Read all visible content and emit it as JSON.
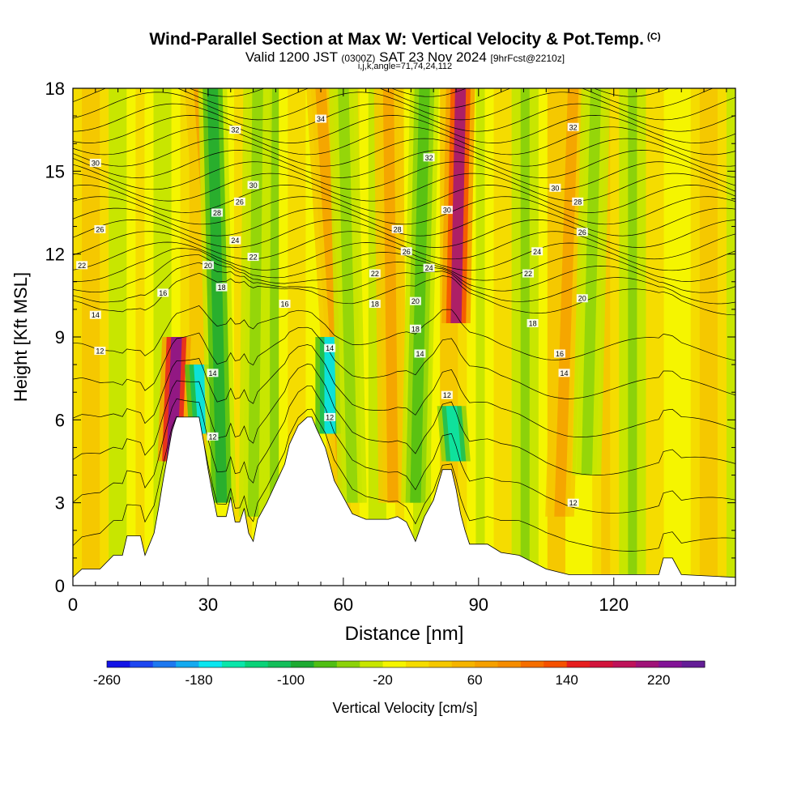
{
  "title": {
    "main": "Wind-Parallel Section at Max W: Vertical Velocity & Pot.Temp.",
    "copyright": "(C)",
    "valid_prefix": "Valid 1200 JST",
    "valid_utc": "(0300Z)",
    "valid_date": "SAT 23 Nov 2024",
    "forecast": "[9hrFcst@2210z]",
    "indices": "i,j,k,angle=71,74,24,112"
  },
  "chart_data": {
    "type": "heatmap",
    "xlabel": "Distance [nm]",
    "ylabel": "Height [Kft MSL]",
    "xlim": [
      0,
      147
    ],
    "ylim": [
      0,
      18
    ],
    "xticks": [
      0,
      30,
      60,
      90,
      120
    ],
    "yticks": [
      0,
      3,
      6,
      9,
      12,
      15,
      18
    ],
    "colorbar": {
      "label": "Vertical Velocity [cm/s]",
      "min": -260,
      "max": 260,
      "tick_labels": [
        -260,
        -180,
        -100,
        -20,
        60,
        140,
        220
      ],
      "colors": [
        "#1414e6",
        "#1e46f0",
        "#1e78f0",
        "#14aaf0",
        "#0ae6f0",
        "#0ae6aa",
        "#0ad278",
        "#14be5a",
        "#1eaa32",
        "#50be14",
        "#8cd20a",
        "#c8e600",
        "#f5f500",
        "#f5dc00",
        "#f5c800",
        "#f5b400",
        "#f5a000",
        "#f58c00",
        "#f56e00",
        "#f55000",
        "#e61e1e",
        "#d2143c",
        "#be145a",
        "#a01478",
        "#821496",
        "#641e96"
      ]
    },
    "terrain_kft": [
      [
        0,
        0.3
      ],
      [
        2,
        0.6
      ],
      [
        6,
        0.6
      ],
      [
        9,
        1.1
      ],
      [
        11,
        1.1
      ],
      [
        12,
        1.8
      ],
      [
        15,
        1.8
      ],
      [
        16,
        1.1
      ],
      [
        18,
        1.9
      ],
      [
        19,
        2.8
      ],
      [
        20,
        3.8
      ],
      [
        21,
        4.7
      ],
      [
        22,
        5.6
      ],
      [
        23,
        6.1
      ],
      [
        28,
        6.1
      ],
      [
        29,
        5.2
      ],
      [
        30,
        4.2
      ],
      [
        31,
        3.3
      ],
      [
        32,
        2.5
      ],
      [
        34,
        2.5
      ],
      [
        35,
        3.2
      ],
      [
        36,
        2.3
      ],
      [
        37,
        2.3
      ],
      [
        38,
        2.8
      ],
      [
        39,
        1.9
      ],
      [
        40,
        1.6
      ],
      [
        41,
        2.4
      ],
      [
        43,
        3.0
      ],
      [
        45,
        3.7
      ],
      [
        47,
        4.4
      ],
      [
        48,
        5.1
      ],
      [
        50,
        5.8
      ],
      [
        52,
        6.1
      ],
      [
        53,
        6.1
      ],
      [
        54,
        5.7
      ],
      [
        56,
        5.0
      ],
      [
        57,
        4.4
      ],
      [
        58,
        3.8
      ],
      [
        60,
        3.2
      ],
      [
        62,
        2.6
      ],
      [
        65,
        2.4
      ],
      [
        70,
        2.4
      ],
      [
        72,
        2.5
      ],
      [
        74,
        2.3
      ],
      [
        76,
        1.6
      ],
      [
        78,
        2.5
      ],
      [
        80,
        3.1
      ],
      [
        82,
        4.2
      ],
      [
        84,
        4.2
      ],
      [
        85,
        3.5
      ],
      [
        86,
        2.6
      ],
      [
        87,
        2.0
      ],
      [
        88,
        1.5
      ],
      [
        92,
        1.5
      ],
      [
        95,
        1.2
      ],
      [
        99,
        1.1
      ],
      [
        105,
        0.6
      ],
      [
        110,
        0.4
      ],
      [
        130,
        0.4
      ],
      [
        131,
        1.0
      ],
      [
        133,
        1.0
      ],
      [
        135,
        0.4
      ],
      [
        147,
        0.3
      ]
    ],
    "theta_contour_labels": [
      {
        "value": 12,
        "x": 6,
        "y": 8.5
      },
      {
        "value": 14,
        "x": 5,
        "y": 9.8
      },
      {
        "value": 16,
        "x": 20,
        "y": 10.6
      },
      {
        "value": 18,
        "x": 33,
        "y": 10.8
      },
      {
        "value": 20,
        "x": 30,
        "y": 11.6
      },
      {
        "value": 22,
        "x": 2,
        "y": 11.6
      },
      {
        "value": 22,
        "x": 40,
        "y": 11.9
      },
      {
        "value": 24,
        "x": 36,
        "y": 12.5
      },
      {
        "value": 26,
        "x": 6,
        "y": 12.9
      },
      {
        "value": 28,
        "x": 32,
        "y": 13.5
      },
      {
        "value": 26,
        "x": 37,
        "y": 13.9
      },
      {
        "value": 30,
        "x": 40,
        "y": 14.5
      },
      {
        "value": 30,
        "x": 5,
        "y": 15.3
      },
      {
        "value": 32,
        "x": 36,
        "y": 16.5
      },
      {
        "value": 34,
        "x": 55,
        "y": 16.9
      },
      {
        "value": 16,
        "x": 47,
        "y": 10.2
      },
      {
        "value": 22,
        "x": 67,
        "y": 11.3
      },
      {
        "value": 18,
        "x": 67,
        "y": 10.2
      },
      {
        "value": 28,
        "x": 72,
        "y": 12.9
      },
      {
        "value": 26,
        "x": 74,
        "y": 12.1
      },
      {
        "value": 24,
        "x": 79,
        "y": 11.5
      },
      {
        "value": 20,
        "x": 76,
        "y": 10.3
      },
      {
        "value": 18,
        "x": 76,
        "y": 9.3
      },
      {
        "value": 14,
        "x": 77,
        "y": 8.4
      },
      {
        "value": 14,
        "x": 57,
        "y": 8.6
      },
      {
        "value": 12,
        "x": 57,
        "y": 6.1
      },
      {
        "value": 12,
        "x": 83,
        "y": 6.9
      },
      {
        "value": 32,
        "x": 79,
        "y": 15.5
      },
      {
        "value": 30,
        "x": 83,
        "y": 13.6
      },
      {
        "value": 32,
        "x": 111,
        "y": 16.6
      },
      {
        "value": 30,
        "x": 107,
        "y": 14.4
      },
      {
        "value": 28,
        "x": 112,
        "y": 13.9
      },
      {
        "value": 26,
        "x": 113,
        "y": 12.8
      },
      {
        "value": 24,
        "x": 103,
        "y": 12.1
      },
      {
        "value": 22,
        "x": 101,
        "y": 11.3
      },
      {
        "value": 20,
        "x": 113,
        "y": 10.4
      },
      {
        "value": 18,
        "x": 102,
        "y": 9.5
      },
      {
        "value": 16,
        "x": 108,
        "y": 8.4
      },
      {
        "value": 14,
        "x": 109,
        "y": 7.7
      },
      {
        "value": 12,
        "x": 111,
        "y": 3.0
      },
      {
        "value": 12,
        "x": 31,
        "y": 5.4
      },
      {
        "value": 14,
        "x": 31,
        "y": 7.7
      }
    ],
    "updraft_bands": [
      {
        "x_base": 22,
        "y_base": 4.5,
        "x_top": 23,
        "y_top": 9.0,
        "w_cm_s": 220
      },
      {
        "x_base": 31,
        "y_base": 10.5,
        "x_top": 28,
        "y_top": 18,
        "w_cm_s": 60
      },
      {
        "x_base": 85,
        "y_base": 9.5,
        "x_top": 86,
        "y_top": 18,
        "w_cm_s": 200
      },
      {
        "x_base": 60,
        "y_base": 3.5,
        "x_top": 55,
        "y_top": 18,
        "w_cm_s": 60
      },
      {
        "x_base": 71,
        "y_base": 3.0,
        "x_top": 70,
        "y_top": 18,
        "w_cm_s": 60
      },
      {
        "x_base": 108,
        "y_base": 2.5,
        "x_top": 111,
        "y_top": 18,
        "w_cm_s": 60
      }
    ],
    "downdraft_bands": [
      {
        "x_base": 29,
        "y_base": 5.5,
        "x_top": 28,
        "y_top": 8.0,
        "w_cm_s": -180
      },
      {
        "x_base": 57,
        "y_base": 5.5,
        "x_top": 57,
        "y_top": 9.0,
        "w_cm_s": -180
      },
      {
        "x_base": 85,
        "y_base": 4.5,
        "x_top": 84,
        "y_top": 6.5,
        "w_cm_s": -160
      },
      {
        "x_base": 33,
        "y_base": 3.0,
        "x_top": 31,
        "y_top": 18,
        "w_cm_s": -100
      },
      {
        "x_base": 40,
        "y_base": 2.5,
        "x_top": 41,
        "y_top": 18,
        "w_cm_s": -60
      },
      {
        "x_base": 62,
        "y_base": 3.0,
        "x_top": 60,
        "y_top": 18,
        "w_cm_s": -60
      },
      {
        "x_base": 76,
        "y_base": 3.0,
        "x_top": 78,
        "y_top": 18,
        "w_cm_s": -80
      },
      {
        "x_base": 114,
        "y_base": 4.0,
        "x_top": 116,
        "y_top": 18,
        "w_cm_s": -60
      }
    ]
  }
}
